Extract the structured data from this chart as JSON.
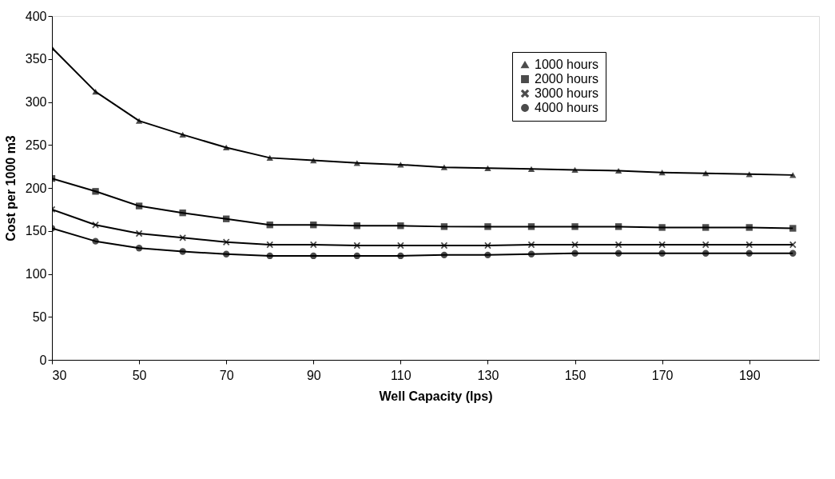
{
  "chart_data": {
    "type": "line",
    "xlabel": "Well Capacity (lps)",
    "ylabel": "Cost per 1000 m3",
    "x": [
      30,
      40,
      50,
      60,
      70,
      80,
      90,
      100,
      110,
      120,
      130,
      140,
      150,
      160,
      170,
      180,
      190,
      200
    ],
    "series": [
      {
        "name": "1000 hours",
        "color": "#000000",
        "marker": "triangle",
        "values": [
          363,
          312,
          278,
          262,
          247,
          235,
          232,
          229,
          227,
          224,
          223,
          222,
          221,
          220,
          218,
          217,
          216,
          215
        ]
      },
      {
        "name": "2000 hours",
        "color": "#000000",
        "marker": "square",
        "values": [
          211,
          196,
          179,
          171,
          164,
          157,
          157,
          156,
          156,
          155,
          155,
          155,
          155,
          155,
          154,
          154,
          154,
          153
        ]
      },
      {
        "name": "3000 hours",
        "color": "#000000",
        "marker": "cross",
        "values": [
          175,
          157,
          147,
          142,
          137,
          134,
          134,
          133,
          133,
          133,
          133,
          134,
          134,
          134,
          134,
          134,
          134,
          134
        ]
      },
      {
        "name": "4000 hours",
        "color": "#000000",
        "marker": "circle",
        "values": [
          153,
          138,
          130,
          126,
          123,
          121,
          121,
          121,
          121,
          122,
          122,
          123,
          124,
          124,
          124,
          124,
          124,
          124
        ]
      }
    ],
    "xlim": [
      30,
      206
    ],
    "xticks": [
      30,
      50,
      70,
      90,
      110,
      130,
      150,
      170,
      190
    ],
    "ylim": [
      0,
      400
    ],
    "yticks": [
      0,
      50,
      100,
      150,
      200,
      250,
      300,
      350,
      400
    ],
    "grid": false,
    "legend": "top right",
    "line_style": "solid"
  }
}
